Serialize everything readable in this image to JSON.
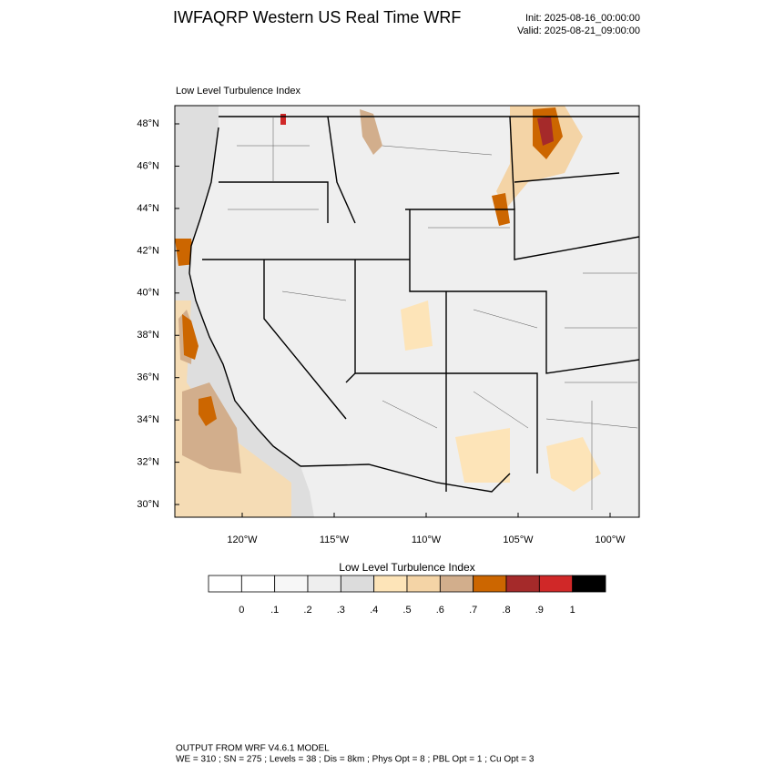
{
  "header": {
    "title": "IWFAQRP Western US Real Time WRF",
    "init": "Init: 2025-08-16_00:00:00",
    "valid": "Valid: 2025-08-21_09:00:00"
  },
  "map": {
    "title": "Low Level Turbulence Index",
    "lat_labels": [
      "48°N",
      "46°N",
      "44°N",
      "42°N",
      "40°N",
      "38°N",
      "36°N",
      "34°N",
      "32°N",
      "30°N"
    ],
    "lon_labels": [
      "120°W",
      "115°W",
      "110°W",
      "105°W",
      "100°W"
    ]
  },
  "colorbar": {
    "title": "Low Level Turbulence Index",
    "colors": [
      "#ffffff",
      "#f7f7f7",
      "#eeeeee",
      "#dcdcdc",
      "#fde4b8",
      "#f4d4a6",
      "#d2ae8c",
      "#cc6600",
      "#a52a2a",
      "#d02828",
      "#000000"
    ],
    "labels": [
      "0",
      ".1",
      ".2",
      ".3",
      ".4",
      ".5",
      ".6",
      ".7",
      ".8",
      ".9",
      "1"
    ]
  },
  "footer": {
    "lines": [
      "OUTPUT FROM WRF V4.6.1 MODEL",
      "WE = 310 ; SN = 275 ; Levels = 38 ; Dis = 8km ; Phys Opt = 8 ; PBL Opt = 1 ; Cu Opt = 3"
    ]
  }
}
